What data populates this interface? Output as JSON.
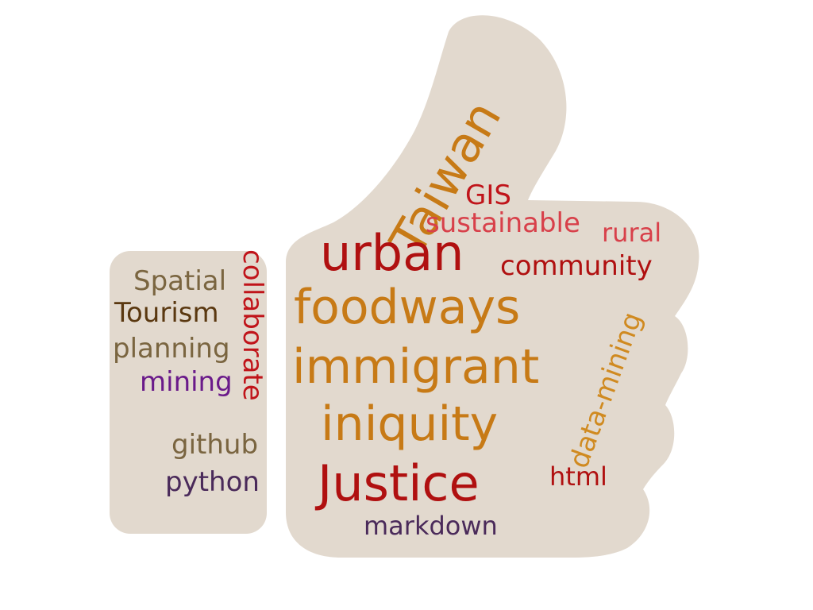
{
  "cloud": {
    "shape": "thumbs-up-icon",
    "shape_color": "#e2d9ce",
    "words": {
      "taiwan": {
        "text": "Taiwan",
        "color": "#c77a16"
      },
      "gis": {
        "text": "GIS",
        "color": "#c0141a"
      },
      "sustainable": {
        "text": "sustainable",
        "color": "#d8404a"
      },
      "rural": {
        "text": "rural",
        "color": "#d8404a"
      },
      "urban": {
        "text": "urban",
        "color": "#b01010"
      },
      "community": {
        "text": "community",
        "color": "#b01010"
      },
      "foodways": {
        "text": "foodways",
        "color": "#c77a16"
      },
      "immigrant": {
        "text": "immigrant",
        "color": "#c77a16"
      },
      "iniquity": {
        "text": "iniquity",
        "color": "#c77a16"
      },
      "data_mining": {
        "text": "data-mining",
        "color": "#d08a20"
      },
      "justice": {
        "text": "Justice",
        "color": "#b01010"
      },
      "html": {
        "text": "html",
        "color": "#b01010"
      },
      "markdown": {
        "text": "markdown",
        "color": "#4a2a5a"
      },
      "spatial": {
        "text": "Spatial",
        "color": "#7a6540"
      },
      "collaborate": {
        "text": "collaborate",
        "color": "#c0141a"
      },
      "tourism": {
        "text": "Tourism",
        "color": "#5a3810"
      },
      "planning": {
        "text": "planning",
        "color": "#7a6540"
      },
      "mining": {
        "text": "mining",
        "color": "#6a1a8a"
      },
      "github": {
        "text": "github",
        "color": "#7a6540"
      },
      "python": {
        "text": "python",
        "color": "#4a2a5a"
      }
    }
  }
}
